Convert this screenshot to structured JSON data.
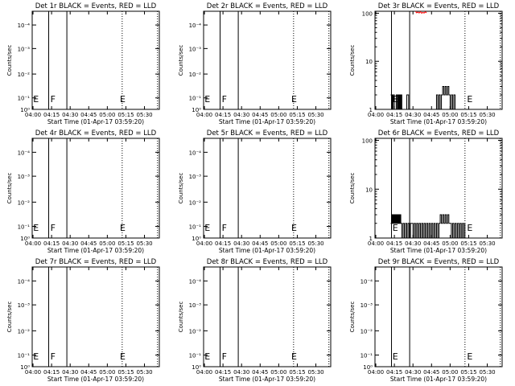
{
  "figure": {
    "colors": {
      "events": "#000000",
      "lld": "#ff0000",
      "background": "#ffffff"
    }
  },
  "chart_data": [
    {
      "type": "line",
      "title": "Det 1r BLACK = Events, RED = LLD",
      "xlabel": "Start Time (01-Apr-17 03:59:20)",
      "ylabel": "Counts/sec",
      "x_ticks": [
        "04:00",
        "04:15",
        "04:30",
        "04:45",
        "05:00",
        "05:15",
        "05:30"
      ],
      "xlim": [
        "03:59:20",
        "05:42:00"
      ],
      "y_scale": "log",
      "y_ticks": [
        "10⁰",
        "10⁻¹",
        "10⁻²",
        "10⁻³",
        "10⁻⁴"
      ],
      "ylim": [
        0.8,
        1.25
      ],
      "series": [],
      "solid_lines": [
        "04:12:40",
        "04:27:20"
      ],
      "dotted_lines": [
        "05:12:00",
        "05:40:30"
      ],
      "markers": [
        {
          "label": "E",
          "x": "04:00:10"
        },
        {
          "label": "F",
          "x": "04:14:00"
        },
        {
          "label": "E",
          "x": "05:10:10"
        }
      ]
    },
    {
      "type": "line",
      "title": "Det 2r BLACK = Events, RED = LLD",
      "xlabel": "Start Time (01-Apr-17 03:59:20)",
      "ylabel": "Counts/sec",
      "x_ticks": [
        "04:00",
        "04:15",
        "04:30",
        "04:45",
        "05:00",
        "05:15",
        "05:30"
      ],
      "xlim": [
        "03:59:20",
        "05:42:00"
      ],
      "y_scale": "log",
      "y_ticks": [
        "10⁰",
        "10⁻¹",
        "10⁻²",
        "10⁻³",
        "10⁻⁴"
      ],
      "ylim": [
        0.8,
        1.25
      ],
      "series": [],
      "solid_lines": [
        "04:12:40",
        "04:27:20"
      ],
      "dotted_lines": [
        "05:12:00",
        "05:40:30"
      ],
      "markers": [
        {
          "label": "E",
          "x": "04:00:10"
        },
        {
          "label": "F",
          "x": "04:14:00"
        },
        {
          "label": "E",
          "x": "05:10:10"
        }
      ]
    },
    {
      "type": "line",
      "title": "Det 3r BLACK = Events, RED = LLD",
      "xlabel": "Start Time (01-Apr-17 03:59:20)",
      "ylabel": "Counts/sec",
      "x_ticks": [
        "04:00",
        "04:15",
        "04:30",
        "04:45",
        "05:00",
        "05:15",
        "05:30"
      ],
      "xlim": [
        "03:59:20",
        "05:42:00"
      ],
      "y_scale": "log",
      "y_ticks": [
        "1",
        "10",
        "100"
      ],
      "ylim": [
        1,
        110
      ],
      "series": [
        {
          "color": "#000000",
          "step": true,
          "x": [
            "04:12:00",
            "04:12:40",
            "04:13:00",
            "04:13:30",
            "04:14:00",
            "04:15:00",
            "04:16:30",
            "04:17:20",
            "04:18:00",
            "04:18:40",
            "04:19:10",
            "04:19:50",
            "04:20:30",
            "04:21:00",
            "04:22:00",
            "04:24:00",
            "04:25:00",
            "04:26:30",
            "04:27:30",
            "04:49:00",
            "04:50:00",
            "04:51:00",
            "04:52:00",
            "04:53:00",
            "04:54:00",
            "04:55:00",
            "04:56:00",
            "04:57:00",
            "04:58:00",
            "04:59:00",
            "05:00:00",
            "05:01:00",
            "05:02:00",
            "05:03:00",
            "05:04:00",
            "05:05:00",
            "05:06:00",
            "05:07:00",
            "05:08:00",
            "05:09:00",
            "05:10:00"
          ],
          "y": [
            2,
            1,
            2,
            1,
            2,
            1,
            2,
            1,
            2,
            1,
            2,
            1,
            2,
            1,
            1,
            1,
            2,
            1,
            1,
            2,
            1,
            2,
            1,
            2,
            3,
            2,
            3,
            2,
            3,
            2,
            1,
            2,
            1,
            2,
            1,
            1,
            1,
            1,
            1,
            1,
            1
          ]
        },
        {
          "color": "#ff0000",
          "step": false,
          "x": [
            "04:32:00",
            "04:33:00",
            "04:34:00",
            "04:35:00",
            "04:36:00",
            "04:37:00",
            "04:38:00",
            "04:39:00",
            "04:40:00",
            "04:41:00"
          ],
          "y": [
            110,
            102,
            106,
            101,
            108,
            100,
            104,
            101,
            107,
            102
          ]
        }
      ],
      "solid_lines": [
        "04:12:40",
        "04:27:20"
      ],
      "dotted_lines": [
        "05:12:00",
        "05:40:30"
      ],
      "markers": [
        {
          "label": "E",
          "x": "04:13:30"
        },
        {
          "label": "E",
          "x": "05:13:40"
        }
      ]
    },
    {
      "type": "line",
      "title": "Det 4r BLACK = Events, RED = LLD",
      "xlabel": "Start Time (01-Apr-17 03:59:20)",
      "ylabel": "Counts/sec",
      "x_ticks": [
        "04:00",
        "04:15",
        "04:30",
        "04:45",
        "05:00",
        "05:15",
        "05:30"
      ],
      "xlim": [
        "03:59:20",
        "05:42:00"
      ],
      "y_scale": "log",
      "y_ticks": [
        "10⁰",
        "10⁻¹",
        "10⁻²",
        "10⁻³",
        "10⁻⁴"
      ],
      "ylim": [
        0.8,
        1.25
      ],
      "series": [],
      "solid_lines": [
        "04:12:40",
        "04:27:20"
      ],
      "dotted_lines": [
        "05:12:00",
        "05:40:30"
      ],
      "markers": [
        {
          "label": "E",
          "x": "04:00:10"
        },
        {
          "label": "F",
          "x": "04:14:00"
        },
        {
          "label": "E",
          "x": "05:10:10"
        }
      ]
    },
    {
      "type": "line",
      "title": "Det 5r BLACK = Events, RED = LLD",
      "xlabel": "Start Time (01-Apr-17 03:59:20)",
      "ylabel": "Counts/sec",
      "x_ticks": [
        "04:00",
        "04:15",
        "04:30",
        "04:45",
        "05:00",
        "05:15",
        "05:30"
      ],
      "xlim": [
        "03:59:20",
        "05:42:00"
      ],
      "y_scale": "log",
      "y_ticks": [
        "10⁰",
        "10⁻¹",
        "10⁻²",
        "10⁻³",
        "10⁻⁴"
      ],
      "ylim": [
        0.8,
        1.25
      ],
      "series": [],
      "solid_lines": [
        "04:12:40",
        "04:27:20"
      ],
      "dotted_lines": [
        "05:12:00",
        "05:40:30"
      ],
      "markers": [
        {
          "label": "E",
          "x": "04:00:10"
        },
        {
          "label": "F",
          "x": "04:14:00"
        },
        {
          "label": "E",
          "x": "05:10:10"
        }
      ]
    },
    {
      "type": "line",
      "title": "Det 6r BLACK = Events, RED = LLD",
      "xlabel": "Start Time (01-Apr-17 03:59:20)",
      "ylabel": "Counts/sec",
      "x_ticks": [
        "04:00",
        "04:15",
        "04:30",
        "04:45",
        "05:00",
        "05:15",
        "05:30"
      ],
      "xlim": [
        "03:59:20",
        "05:42:00"
      ],
      "y_scale": "log",
      "y_ticks": [
        "1",
        "10",
        "100"
      ],
      "ylim": [
        1,
        110
      ],
      "series": [
        {
          "color": "#000000",
          "step": true,
          "x": [
            "04:12:00",
            "04:12:40",
            "04:13:10",
            "04:13:40",
            "04:14:10",
            "04:14:40",
            "04:15:10",
            "04:15:40",
            "04:16:10",
            "04:16:40",
            "04:17:10",
            "04:17:40",
            "04:18:10",
            "04:18:40",
            "04:19:10",
            "04:19:40",
            "04:20:10",
            "04:21:00",
            "04:22:00",
            "04:23:00",
            "04:24:00",
            "04:25:00",
            "04:26:00",
            "04:27:00",
            "04:28:00",
            "04:29:00",
            "04:30:00",
            "04:31:00",
            "04:32:00",
            "04:33:00",
            "04:34:00",
            "04:35:00",
            "04:36:00",
            "04:37:00",
            "04:38:00",
            "04:39:00",
            "04:40:00",
            "04:41:00",
            "04:42:00",
            "04:43:00",
            "04:44:00",
            "04:45:00",
            "04:46:00",
            "04:47:00",
            "04:48:00",
            "04:49:00",
            "04:50:00",
            "04:51:00",
            "04:52:00",
            "04:53:00",
            "04:54:00",
            "04:55:00",
            "04:56:00",
            "04:57:00",
            "04:58:00",
            "04:59:00",
            "05:00:00",
            "05:01:00",
            "05:02:00",
            "05:03:00",
            "05:04:00",
            "05:05:00",
            "05:06:00",
            "05:07:00",
            "05:08:00",
            "05:09:00",
            "05:10:00",
            "05:11:00",
            "05:12:00"
          ],
          "y": [
            2,
            3,
            2,
            3,
            2,
            3,
            2,
            3,
            2,
            3,
            2,
            3,
            2,
            3,
            2,
            3,
            2,
            1,
            2,
            1,
            2,
            1,
            2,
            1,
            2,
            2,
            1,
            2,
            1,
            2,
            1,
            2,
            1,
            2,
            1,
            2,
            1,
            2,
            1,
            2,
            1,
            2,
            1,
            2,
            1,
            2,
            1,
            2,
            3,
            2,
            3,
            2,
            3,
            2,
            3,
            2,
            2,
            1,
            2,
            1,
            2,
            1,
            2,
            1,
            2,
            1,
            2,
            1,
            2
          ]
        }
      ],
      "solid_lines": [
        "04:12:40",
        "04:27:20"
      ],
      "dotted_lines": [
        "05:12:00",
        "05:40:30"
      ],
      "markers": [
        {
          "label": "E",
          "x": "04:13:30"
        },
        {
          "label": "E",
          "x": "05:13:40"
        }
      ]
    },
    {
      "type": "line",
      "title": "Det 7r BLACK = Events, RED = LLD",
      "xlabel": "Start Time (01-Apr-17 03:59:20)",
      "ylabel": "Counts/sec",
      "x_ticks": [
        "04:00",
        "04:15",
        "04:30",
        "04:45",
        "05:00",
        "05:15",
        "05:30"
      ],
      "xlim": [
        "03:59:20",
        "05:42:00"
      ],
      "y_scale": "log",
      "y_ticks": [
        "10⁰",
        "10⁻¹",
        "10⁻²",
        "10⁻³",
        "10⁻⁴"
      ],
      "ylim": [
        0.8,
        1.25
      ],
      "series": [],
      "solid_lines": [
        "04:12:40",
        "04:27:20"
      ],
      "dotted_lines": [
        "05:12:00",
        "05:40:30"
      ],
      "markers": [
        {
          "label": "E",
          "x": "04:00:10"
        },
        {
          "label": "F",
          "x": "04:14:00"
        },
        {
          "label": "E",
          "x": "05:10:10"
        }
      ]
    },
    {
      "type": "line",
      "title": "Det 8r BLACK = Events, RED = LLD",
      "xlabel": "Start Time (01-Apr-17 03:59:20)",
      "ylabel": "Counts/sec",
      "x_ticks": [
        "04:00",
        "04:15",
        "04:30",
        "04:45",
        "05:00",
        "05:15",
        "05:30"
      ],
      "xlim": [
        "03:59:20",
        "05:42:00"
      ],
      "y_scale": "log",
      "y_ticks": [
        "10⁰",
        "10⁻¹",
        "10⁻²",
        "10⁻³",
        "10⁻⁴"
      ],
      "ylim": [
        0.8,
        1.25
      ],
      "series": [],
      "solid_lines": [
        "04:12:40",
        "04:27:20"
      ],
      "dotted_lines": [
        "05:12:00",
        "05:40:30"
      ],
      "markers": [
        {
          "label": "E",
          "x": "04:00:10"
        },
        {
          "label": "F",
          "x": "04:14:00"
        },
        {
          "label": "E",
          "x": "05:10:10"
        }
      ]
    },
    {
      "type": "line",
      "title": "Det 9r BLACK = Events, RED = LLD",
      "xlabel": "Start Time (01-Apr-17 03:59:20)",
      "ylabel": "Counts/sec",
      "x_ticks": [
        "04:00",
        "04:15",
        "04:30",
        "04:45",
        "05:00",
        "05:15",
        "05:30"
      ],
      "xlim": [
        "03:59:20",
        "05:42:00"
      ],
      "y_scale": "log",
      "y_ticks": [
        "10⁰",
        "10⁻¹",
        "10⁻²",
        "10⁻³",
        "10⁻⁴"
      ],
      "ylim": [
        0.8,
        1.25
      ],
      "series": [],
      "solid_lines": [
        "04:12:40",
        "04:27:20"
      ],
      "dotted_lines": [
        "05:12:00",
        "05:40:30"
      ],
      "markers": [
        {
          "label": "E",
          "x": "04:13:30"
        },
        {
          "label": "E",
          "x": "05:13:40"
        }
      ]
    }
  ]
}
